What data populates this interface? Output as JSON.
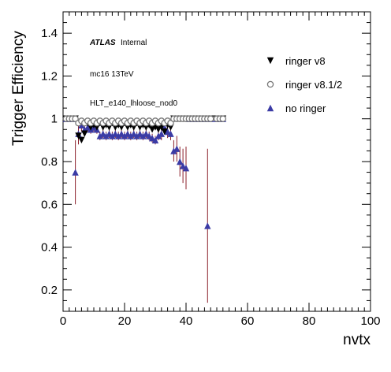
{
  "chart_data": {
    "type": "scatter",
    "title": "",
    "xlabel": "nvtx",
    "ylabel": "Trigger Efficiency",
    "xlim": [
      0,
      100
    ],
    "ylim": [
      0.1,
      1.5
    ],
    "xticks": [
      "0",
      "20",
      "40",
      "60",
      "80",
      "100"
    ],
    "yticks": [
      "0.2",
      "0.4",
      "0.6",
      "0.8",
      "1",
      "1.2",
      "1.4"
    ],
    "grid": false,
    "legend_position": "top-right",
    "annotations": {
      "atlas": "ATLAS",
      "atlas_suffix": "Internal",
      "line2": "mc16 13TeV",
      "line3": "HLT_e140_lhloose_nod0"
    },
    "series": [
      {
        "name": "ringer v8",
        "marker": "triangle-down",
        "color": "#000000",
        "points": [
          [
            1,
            1.0
          ],
          [
            2,
            1.0
          ],
          [
            3,
            1.0
          ],
          [
            4,
            1.0
          ],
          [
            5,
            0.92
          ],
          [
            6,
            0.9
          ],
          [
            7,
            0.93
          ],
          [
            8,
            0.98
          ],
          [
            9,
            0.96
          ],
          [
            10,
            0.97
          ],
          [
            11,
            0.96
          ],
          [
            12,
            0.98
          ],
          [
            13,
            0.96
          ],
          [
            14,
            0.97
          ],
          [
            15,
            0.96
          ],
          [
            16,
            0.98
          ],
          [
            17,
            0.96
          ],
          [
            18,
            0.97
          ],
          [
            19,
            0.96
          ],
          [
            20,
            0.98
          ],
          [
            21,
            0.96
          ],
          [
            22,
            0.97
          ],
          [
            23,
            0.96
          ],
          [
            24,
            0.98
          ],
          [
            25,
            0.96
          ],
          [
            26,
            0.97
          ],
          [
            27,
            0.96
          ],
          [
            28,
            0.97
          ],
          [
            29,
            0.95
          ],
          [
            30,
            0.96
          ],
          [
            31,
            0.95
          ],
          [
            32,
            0.96
          ],
          [
            33,
            0.94
          ],
          [
            34,
            0.97
          ],
          [
            35,
            0.96
          ],
          [
            36,
            1.0
          ],
          [
            37,
            1.0
          ],
          [
            38,
            1.0
          ],
          [
            39,
            1.0
          ],
          [
            40,
            1.0
          ],
          [
            41,
            1.0
          ],
          [
            42,
            1.0
          ],
          [
            43,
            1.0
          ],
          [
            44,
            1.0
          ],
          [
            45,
            1.0
          ],
          [
            46,
            1.0
          ],
          [
            47,
            1.0
          ],
          [
            48,
            1.0
          ],
          [
            50,
            1.0
          ],
          [
            51,
            1.0
          ],
          [
            52,
            1.0
          ]
        ]
      },
      {
        "name": "ringer v8.1/2",
        "marker": "circle-open",
        "color": "#777777",
        "points": [
          [
            1,
            1.0
          ],
          [
            2,
            1.0
          ],
          [
            3,
            1.0
          ],
          [
            4,
            1.0
          ],
          [
            5,
            0.98
          ],
          [
            6,
            0.99
          ],
          [
            7,
            0.98
          ],
          [
            8,
            0.99
          ],
          [
            9,
            0.98
          ],
          [
            10,
            0.99
          ],
          [
            11,
            0.98
          ],
          [
            12,
            0.99
          ],
          [
            13,
            0.98
          ],
          [
            14,
            0.99
          ],
          [
            15,
            0.98
          ],
          [
            16,
            0.99
          ],
          [
            17,
            0.98
          ],
          [
            18,
            0.99
          ],
          [
            19,
            0.98
          ],
          [
            20,
            0.99
          ],
          [
            21,
            0.98
          ],
          [
            22,
            0.99
          ],
          [
            23,
            0.98
          ],
          [
            24,
            0.99
          ],
          [
            25,
            0.98
          ],
          [
            26,
            0.99
          ],
          [
            27,
            0.98
          ],
          [
            28,
            0.99
          ],
          [
            29,
            0.98
          ],
          [
            30,
            0.99
          ],
          [
            31,
            0.98
          ],
          [
            32,
            0.99
          ],
          [
            33,
            0.98
          ],
          [
            34,
            0.99
          ],
          [
            35,
            0.98
          ],
          [
            36,
            1.0
          ],
          [
            37,
            1.0
          ],
          [
            38,
            1.0
          ],
          [
            39,
            1.0
          ],
          [
            40,
            1.0
          ],
          [
            41,
            1.0
          ],
          [
            42,
            1.0
          ],
          [
            43,
            1.0
          ],
          [
            44,
            1.0
          ],
          [
            45,
            1.0
          ],
          [
            46,
            1.0
          ],
          [
            47,
            1.0
          ],
          [
            48,
            1.0
          ],
          [
            50,
            1.0
          ],
          [
            51,
            1.0
          ],
          [
            52,
            1.0
          ]
        ]
      },
      {
        "name": "no ringer",
        "marker": "triangle-up",
        "color": "#3b3ba5",
        "points": [
          [
            1,
            1.0,
            0,
            0
          ],
          [
            2,
            1.0,
            0,
            0
          ],
          [
            3,
            1.0,
            0,
            0
          ],
          [
            4,
            0.75,
            0.15,
            0.15
          ],
          [
            5,
            0.93,
            0.05,
            0.05
          ],
          [
            6,
            0.97,
            0.03,
            0.03
          ],
          [
            7,
            0.95,
            0.02,
            0.02
          ],
          [
            8,
            0.96,
            0.02,
            0.02
          ],
          [
            9,
            0.95,
            0.02,
            0.02
          ],
          [
            10,
            0.96,
            0.02,
            0.02
          ],
          [
            11,
            0.95,
            0.02,
            0.02
          ],
          [
            12,
            0.92,
            0.02,
            0.02
          ],
          [
            13,
            0.93,
            0.02,
            0.02
          ],
          [
            14,
            0.92,
            0.02,
            0.02
          ],
          [
            15,
            0.93,
            0.02,
            0.02
          ],
          [
            16,
            0.92,
            0.02,
            0.02
          ],
          [
            17,
            0.93,
            0.02,
            0.02
          ],
          [
            18,
            0.92,
            0.02,
            0.02
          ],
          [
            19,
            0.93,
            0.02,
            0.02
          ],
          [
            20,
            0.92,
            0.02,
            0.02
          ],
          [
            21,
            0.93,
            0.02,
            0.02
          ],
          [
            22,
            0.92,
            0.02,
            0.02
          ],
          [
            23,
            0.93,
            0.02,
            0.02
          ],
          [
            24,
            0.92,
            0.02,
            0.02
          ],
          [
            25,
            0.93,
            0.02,
            0.02
          ],
          [
            26,
            0.92,
            0.02,
            0.02
          ],
          [
            27,
            0.93,
            0.02,
            0.02
          ],
          [
            28,
            0.92,
            0.02,
            0.02
          ],
          [
            29,
            0.91,
            0.02,
            0.02
          ],
          [
            30,
            0.9,
            0.02,
            0.02
          ],
          [
            31,
            0.92,
            0.02,
            0.02
          ],
          [
            32,
            0.93,
            0.03,
            0.03
          ],
          [
            33,
            0.96,
            0.03,
            0.03
          ],
          [
            34,
            0.94,
            0.03,
            0.03
          ],
          [
            35,
            0.93,
            0.03,
            0.03
          ],
          [
            36,
            0.85,
            0.05,
            0.05
          ],
          [
            37,
            0.86,
            0.06,
            0.06
          ],
          [
            38,
            0.8,
            0.07,
            0.07
          ],
          [
            39,
            0.78,
            0.08,
            0.08
          ],
          [
            40,
            0.77,
            0.1,
            0.1
          ],
          [
            41,
            1.0,
            0,
            0
          ],
          [
            42,
            1.0,
            0,
            0
          ],
          [
            43,
            1.0,
            0,
            0
          ],
          [
            44,
            1.0,
            0,
            0
          ],
          [
            45,
            1.0,
            0,
            0
          ],
          [
            46,
            1.0,
            0,
            0
          ],
          [
            47,
            0.5,
            0.36,
            0.36
          ],
          [
            48,
            1.0,
            0,
            0
          ],
          [
            50,
            1.0,
            0,
            0
          ],
          [
            51,
            1.0,
            0,
            0
          ],
          [
            52,
            1.0,
            0,
            0
          ]
        ]
      }
    ]
  }
}
